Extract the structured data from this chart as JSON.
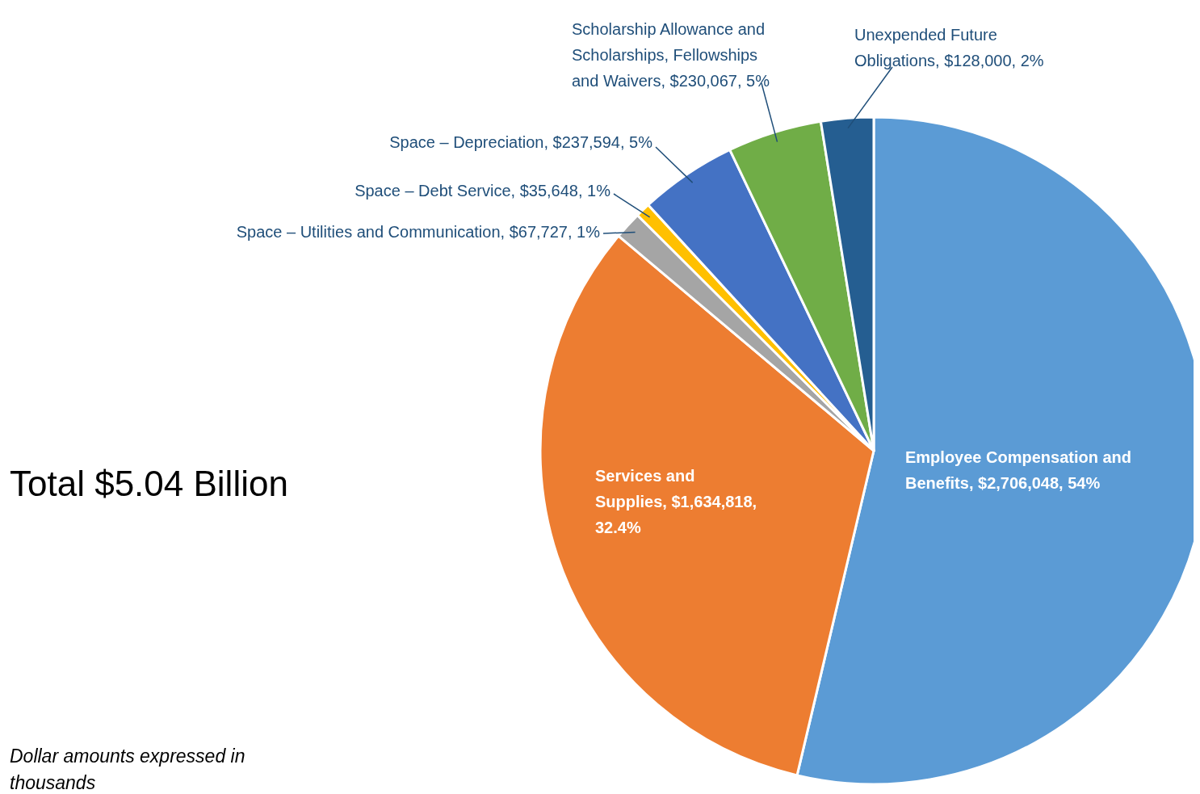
{
  "chart_data": {
    "type": "pie",
    "categories": [
      "Employee Compensation and Benefits",
      "Services and Supplies",
      "Space – Utilities and Communication",
      "Space – Debt Service",
      "Space – Depreciation",
      "Scholarship Allowance and Scholarships, Fellowships and Waivers",
      "Unexpended Future Obligations"
    ],
    "values": [
      2706048,
      1634818,
      67727,
      35648,
      237594,
      230067,
      128000
    ],
    "value_labels": [
      "$2,706,048, 54%",
      "$1,634,818, 32.4%",
      "$67,727, 1%",
      "$35,648, 1%",
      "$237,594, 5%",
      "$230,067, 5%",
      "$128,000, 2%"
    ],
    "colors": [
      "#5b9bd5",
      "#ed7d31",
      "#a5a5a5",
      "#ffc000",
      "#4472c4",
      "#70ad47",
      "#255e91"
    ],
    "annotations": [
      "Total $5.04 Billion",
      "Dollar amounts expressed in thousands"
    ]
  }
}
